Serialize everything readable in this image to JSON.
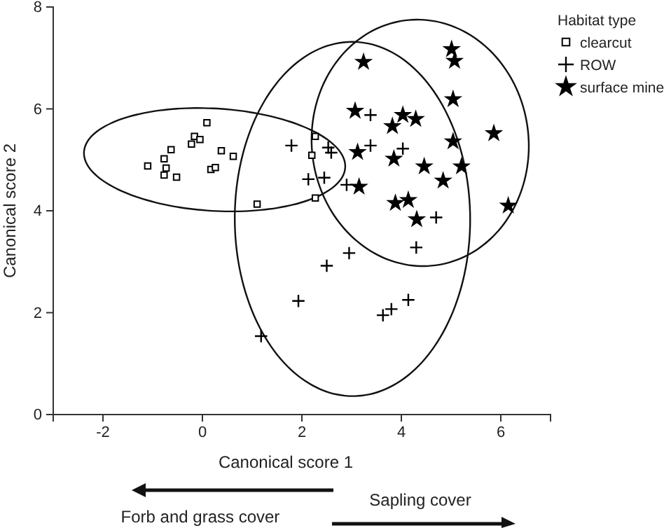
{
  "chart_data": {
    "type": "scatter",
    "xlabel": "Canonical score 1",
    "ylabel": "Canonical score 2",
    "legend_title": "Habitat type",
    "legend": "top right",
    "xlim": [
      -3,
      7
    ],
    "ylim": [
      0,
      8
    ],
    "xticks": [
      -2,
      0,
      2,
      4,
      6
    ],
    "yticks": [
      0,
      2,
      4,
      6,
      8
    ],
    "grid": false,
    "series": [
      {
        "name": "clearcut",
        "color": "#000000",
        "marker": "square",
        "x": [
          -1.1,
          -0.77,
          -0.73,
          -0.77,
          -0.63,
          -0.52,
          -0.22,
          -0.16,
          -0.05,
          0.09,
          0.17,
          0.26,
          0.38,
          0.62,
          1.1,
          2.2,
          2.27,
          2.27
        ],
        "values": [
          4.88,
          5.02,
          4.84,
          4.7,
          5.2,
          4.66,
          5.31,
          5.46,
          5.4,
          5.73,
          4.81,
          4.85,
          5.18,
          5.07,
          4.13,
          5.09,
          5.46,
          4.25
        ]
      },
      {
        "name": "ROW",
        "color": "#000000",
        "marker": "cross",
        "x": [
          1.79,
          2.13,
          2.45,
          2.53,
          2.59,
          2.9,
          2.5,
          1.93,
          1.18,
          2.95,
          3.38,
          3.38,
          4.03,
          4.7,
          4.3,
          3.63,
          3.8,
          4.14
        ],
        "values": [
          5.28,
          4.62,
          4.65,
          5.24,
          5.14,
          4.51,
          2.92,
          2.23,
          1.54,
          3.17,
          5.88,
          5.28,
          5.22,
          3.87,
          3.28,
          1.95,
          2.07,
          2.25
        ]
      },
      {
        "name": "surface mine",
        "color": "#000000",
        "marker": "star",
        "x": [
          3.24,
          5.01,
          5.07,
          5.04,
          5.86,
          6.15,
          3.07,
          4.03,
          4.29,
          3.82,
          3.12,
          3.85,
          5.04,
          4.46,
          5.21,
          4.84,
          3.15,
          3.88,
          4.14,
          4.31
        ],
        "values": [
          6.92,
          7.17,
          6.94,
          6.19,
          5.52,
          4.1,
          5.96,
          5.88,
          5.8,
          5.66,
          5.15,
          5.02,
          5.36,
          4.87,
          4.87,
          4.59,
          4.47,
          4.15,
          4.21,
          3.83
        ]
      }
    ],
    "annotations": [
      "Forb and grass cover",
      "Sapling cover"
    ]
  }
}
